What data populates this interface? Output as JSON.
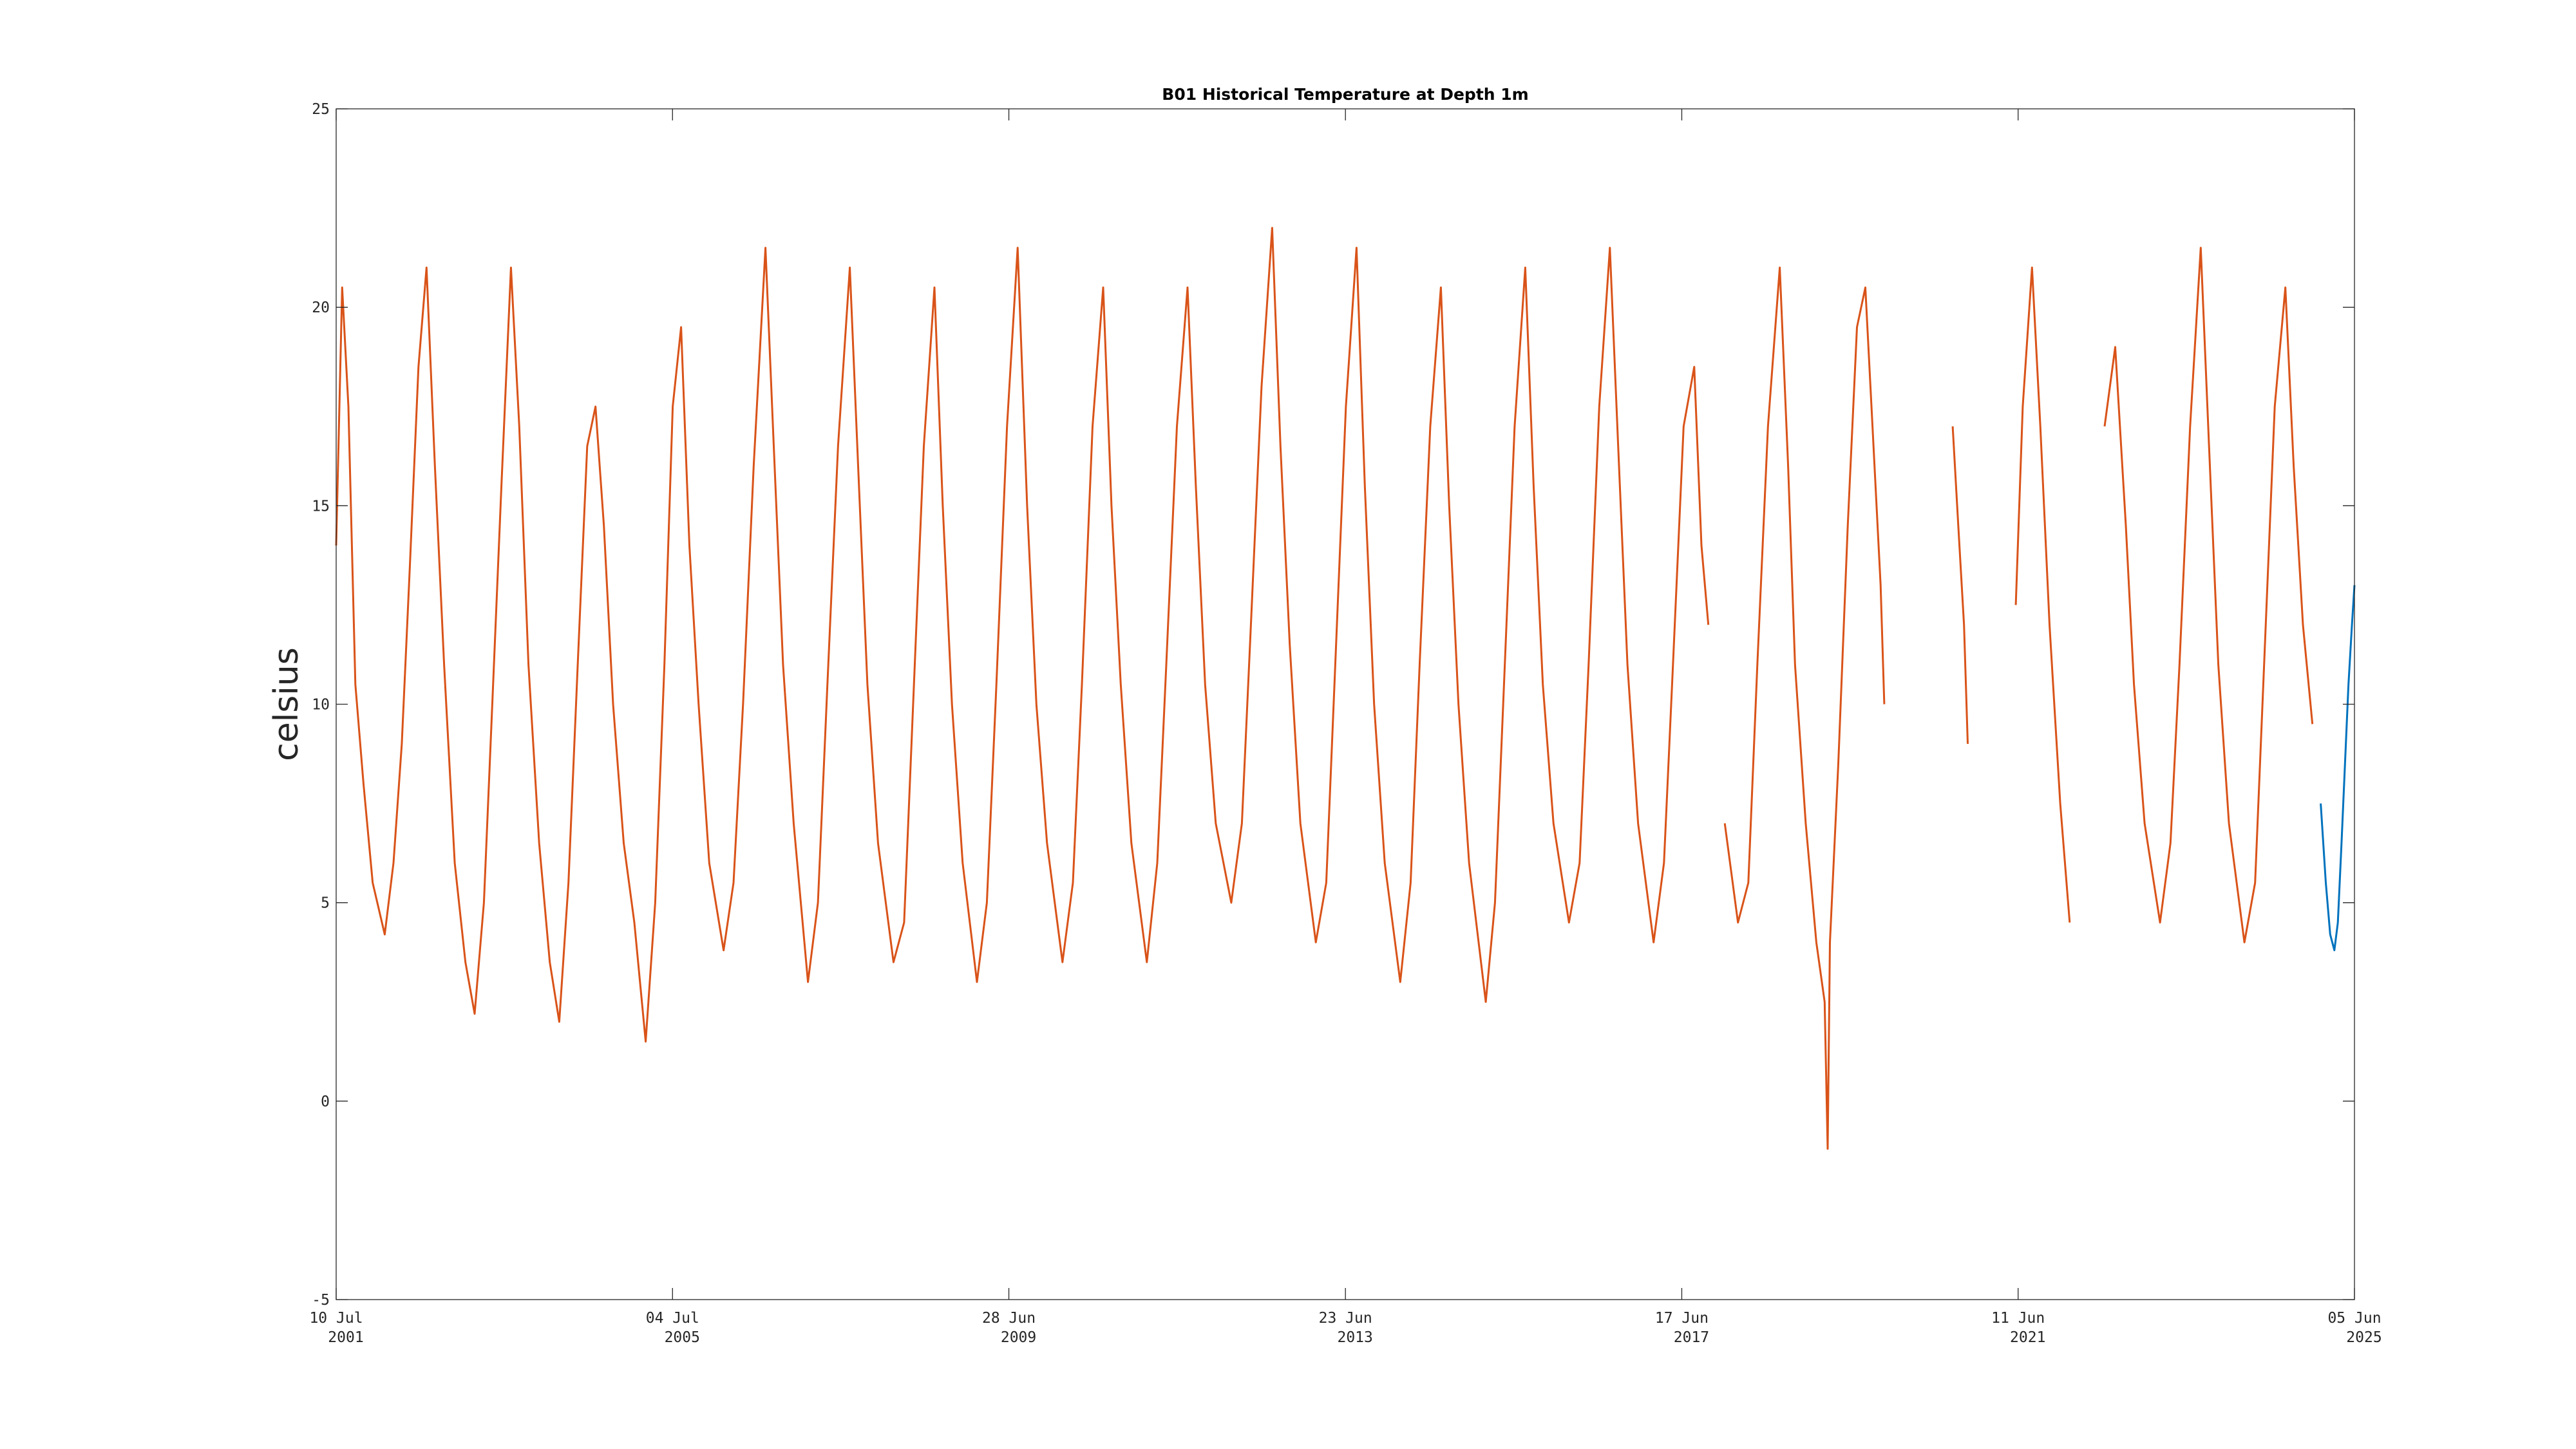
{
  "chart_data": {
    "type": "line",
    "title": "B01 Historical Temperature at Depth 1m",
    "xlabel": "",
    "ylabel": "celsius",
    "xlim": [
      "2001-07-10",
      "2025-06-05"
    ],
    "ylim": [
      -5,
      25
    ],
    "yticks": [
      -5,
      0,
      5,
      10,
      15,
      20,
      25
    ],
    "xticks": [
      {
        "date": "2001-07-10",
        "line1": "10 Jul",
        "line2": "2001"
      },
      {
        "date": "2005-07-04",
        "line1": "04 Jul",
        "line2": "2005"
      },
      {
        "date": "2009-06-28",
        "line1": "28 Jun",
        "line2": "2009"
      },
      {
        "date": "2013-06-23",
        "line1": "23 Jun",
        "line2": "2013"
      },
      {
        "date": "2017-06-17",
        "line1": "17 Jun",
        "line2": "2017"
      },
      {
        "date": "2021-06-11",
        "line1": "11 Jun",
        "line2": "2021"
      },
      {
        "date": "2025-06-05",
        "line1": "05 Jun",
        "line2": "2025"
      }
    ],
    "grid": false,
    "legend": "none",
    "series": [
      {
        "color": "#D95319",
        "points": [
          [
            "2001-07-10",
            14.0
          ],
          [
            "2001-08-05",
            20.5
          ],
          [
            "2001-09-01",
            17.5
          ],
          [
            "2001-10-01",
            10.5
          ],
          [
            "2001-11-05",
            8.0
          ],
          [
            "2001-12-15",
            5.5
          ],
          [
            "2002-02-05",
            4.2
          ],
          [
            "2002-03-15",
            6.0
          ],
          [
            "2002-04-20",
            9.0
          ],
          [
            "2002-05-25",
            13.5
          ],
          [
            "2002-07-01",
            18.5
          ],
          [
            "2002-08-05",
            21.0
          ],
          [
            "2002-09-10",
            16.0
          ],
          [
            "2002-10-20",
            11.0
          ],
          [
            "2002-12-05",
            6.0
          ],
          [
            "2003-01-20",
            3.5
          ],
          [
            "2003-03-01",
            2.2
          ],
          [
            "2003-04-10",
            5.0
          ],
          [
            "2003-05-20",
            10.5
          ],
          [
            "2003-06-25",
            15.5
          ],
          [
            "2003-08-05",
            21.0
          ],
          [
            "2003-09-10",
            17.0
          ],
          [
            "2003-10-20",
            11.0
          ],
          [
            "2003-12-05",
            6.5
          ],
          [
            "2004-01-20",
            3.5
          ],
          [
            "2004-03-01",
            2.0
          ],
          [
            "2004-04-10",
            5.5
          ],
          [
            "2004-05-20",
            11.0
          ],
          [
            "2004-06-30",
            16.5
          ],
          [
            "2004-08-05",
            17.5
          ],
          [
            "2004-09-10",
            14.5
          ],
          [
            "2004-10-20",
            10.0
          ],
          [
            "2004-12-05",
            6.5
          ],
          [
            "2005-01-20",
            4.5
          ],
          [
            "2005-03-10",
            1.5
          ],
          [
            "2005-04-20",
            5.0
          ],
          [
            "2005-05-30",
            11.0
          ],
          [
            "2005-07-05",
            17.5
          ],
          [
            "2005-08-10",
            19.5
          ],
          [
            "2005-09-15",
            14.0
          ],
          [
            "2005-10-25",
            10.0
          ],
          [
            "2005-12-10",
            6.0
          ],
          [
            "2006-02-10",
            3.8
          ],
          [
            "2006-03-25",
            5.5
          ],
          [
            "2006-05-05",
            10.0
          ],
          [
            "2006-06-20",
            16.0
          ],
          [
            "2006-08-10",
            21.5
          ],
          [
            "2006-09-15",
            16.5
          ],
          [
            "2006-10-25",
            11.0
          ],
          [
            "2006-12-10",
            7.0
          ],
          [
            "2007-02-10",
            3.0
          ],
          [
            "2007-03-25",
            5.0
          ],
          [
            "2007-05-05",
            10.5
          ],
          [
            "2007-06-20",
            16.5
          ],
          [
            "2007-08-10",
            21.0
          ],
          [
            "2007-09-15",
            16.0
          ],
          [
            "2007-10-25",
            10.5
          ],
          [
            "2007-12-10",
            6.5
          ],
          [
            "2008-02-15",
            3.5
          ],
          [
            "2008-04-01",
            4.5
          ],
          [
            "2008-05-10",
            10.0
          ],
          [
            "2008-06-25",
            16.5
          ],
          [
            "2008-08-10",
            20.5
          ],
          [
            "2008-09-15",
            15.0
          ],
          [
            "2008-10-25",
            10.0
          ],
          [
            "2008-12-10",
            6.0
          ],
          [
            "2009-02-10",
            3.0
          ],
          [
            "2009-03-25",
            5.0
          ],
          [
            "2009-05-05",
            10.5
          ],
          [
            "2009-06-20",
            17.0
          ],
          [
            "2009-08-05",
            21.5
          ],
          [
            "2009-09-15",
            15.0
          ],
          [
            "2009-10-25",
            10.0
          ],
          [
            "2009-12-10",
            6.5
          ],
          [
            "2010-02-15",
            3.5
          ],
          [
            "2010-04-01",
            5.5
          ],
          [
            "2010-05-10",
            10.5
          ],
          [
            "2010-06-25",
            17.0
          ],
          [
            "2010-08-10",
            20.5
          ],
          [
            "2010-09-15",
            15.0
          ],
          [
            "2010-10-25",
            10.5
          ],
          [
            "2010-12-10",
            6.5
          ],
          [
            "2011-02-15",
            3.5
          ],
          [
            "2011-04-01",
            6.0
          ],
          [
            "2011-05-10",
            11.0
          ],
          [
            "2011-06-25",
            17.0
          ],
          [
            "2011-08-10",
            20.5
          ],
          [
            "2011-09-15",
            15.5
          ],
          [
            "2011-10-25",
            10.5
          ],
          [
            "2011-12-10",
            7.0
          ],
          [
            "2012-02-15",
            5.0
          ],
          [
            "2012-04-01",
            7.0
          ],
          [
            "2012-05-10",
            12.0
          ],
          [
            "2012-06-25",
            18.0
          ],
          [
            "2012-08-10",
            22.0
          ],
          [
            "2012-09-15",
            16.5
          ],
          [
            "2012-10-25",
            11.5
          ],
          [
            "2012-12-10",
            7.0
          ],
          [
            "2013-02-15",
            4.0
          ],
          [
            "2013-04-01",
            5.5
          ],
          [
            "2013-05-10",
            11.0
          ],
          [
            "2013-06-25",
            17.5
          ],
          [
            "2013-08-10",
            21.5
          ],
          [
            "2013-09-15",
            15.5
          ],
          [
            "2013-10-25",
            10.0
          ],
          [
            "2013-12-10",
            6.0
          ],
          [
            "2014-02-15",
            3.0
          ],
          [
            "2014-04-01",
            5.5
          ],
          [
            "2014-05-10",
            11.0
          ],
          [
            "2014-06-25",
            17.0
          ],
          [
            "2014-08-10",
            20.5
          ],
          [
            "2014-09-15",
            15.0
          ],
          [
            "2014-10-25",
            10.0
          ],
          [
            "2014-12-10",
            6.0
          ],
          [
            "2015-02-20",
            2.5
          ],
          [
            "2015-04-01",
            5.0
          ],
          [
            "2015-05-10",
            10.5
          ],
          [
            "2015-06-25",
            17.0
          ],
          [
            "2015-08-10",
            21.0
          ],
          [
            "2015-09-15",
            15.5
          ],
          [
            "2015-10-25",
            10.5
          ],
          [
            "2015-12-10",
            7.0
          ],
          [
            "2016-02-15",
            4.5
          ],
          [
            "2016-04-01",
            6.0
          ],
          [
            "2016-05-10",
            11.0
          ],
          [
            "2016-06-25",
            17.5
          ],
          [
            "2016-08-10",
            21.5
          ],
          [
            "2016-09-15",
            16.5
          ],
          [
            "2016-10-25",
            11.0
          ],
          [
            "2016-12-10",
            7.0
          ],
          [
            "2017-02-15",
            4.0
          ],
          [
            "2017-04-01",
            6.0
          ],
          [
            "2017-05-10",
            11.0
          ],
          [
            "2017-06-25",
            17.0
          ],
          [
            "2017-08-10",
            18.5
          ],
          [
            "2017-09-10",
            14.0
          ],
          [
            "2017-10-10",
            12.0
          ],
          null,
          [
            "2017-12-20",
            7.0
          ],
          [
            "2018-02-15",
            4.5
          ],
          [
            "2018-04-01",
            5.5
          ],
          [
            "2018-05-10",
            11.0
          ],
          [
            "2018-06-25",
            17.0
          ],
          [
            "2018-08-15",
            21.0
          ],
          [
            "2018-09-20",
            16.0
          ],
          [
            "2018-10-20",
            11.0
          ],
          [
            "2018-12-05",
            7.0
          ],
          [
            "2019-01-20",
            4.0
          ],
          [
            "2019-02-25",
            2.5
          ],
          [
            "2019-03-10",
            -1.2
          ],
          [
            "2019-03-20",
            4.0
          ],
          [
            "2019-04-25",
            8.5
          ],
          [
            "2019-06-05",
            14.5
          ],
          [
            "2019-07-15",
            19.5
          ],
          [
            "2019-08-20",
            20.5
          ],
          [
            "2019-09-20",
            17.0
          ],
          [
            "2019-10-25",
            13.0
          ],
          [
            "2019-11-10",
            10.0
          ],
          null,
          [
            "2020-09-01",
            17.0
          ],
          [
            "2020-09-25",
            14.5
          ],
          [
            "2020-10-20",
            12.0
          ],
          [
            "2020-11-05",
            9.0
          ],
          null,
          [
            "2021-06-01",
            12.5
          ],
          [
            "2021-07-01",
            17.5
          ],
          [
            "2021-08-10",
            21.0
          ],
          [
            "2021-09-15",
            17.0
          ],
          [
            "2021-10-25",
            12.0
          ],
          [
            "2021-12-10",
            7.5
          ],
          [
            "2022-01-20",
            4.5
          ],
          null,
          [
            "2022-06-20",
            17.0
          ],
          [
            "2022-08-05",
            19.0
          ],
          [
            "2022-09-20",
            14.5
          ],
          [
            "2022-10-25",
            10.5
          ],
          [
            "2022-12-10",
            7.0
          ],
          [
            "2023-02-15",
            4.5
          ],
          [
            "2023-04-01",
            6.5
          ],
          [
            "2023-05-10",
            11.0
          ],
          [
            "2023-06-25",
            17.0
          ],
          [
            "2023-08-10",
            21.5
          ],
          [
            "2023-09-15",
            16.5
          ],
          [
            "2023-10-25",
            11.0
          ],
          [
            "2023-12-10",
            7.0
          ],
          [
            "2024-02-15",
            4.0
          ],
          [
            "2024-04-01",
            5.5
          ],
          [
            "2024-05-10",
            11.0
          ],
          [
            "2024-06-25",
            17.5
          ],
          [
            "2024-08-10",
            20.5
          ],
          [
            "2024-09-15",
            16.0
          ],
          [
            "2024-10-25",
            12.0
          ],
          [
            "2024-12-05",
            9.5
          ]
        ]
      },
      {
        "color": "#0072BD",
        "points": [
          [
            "2025-01-10",
            7.5
          ],
          [
            "2025-02-01",
            5.5
          ],
          [
            "2025-02-20",
            4.2
          ],
          [
            "2025-03-10",
            3.8
          ],
          [
            "2025-03-25",
            4.5
          ],
          [
            "2025-04-10",
            6.5
          ],
          [
            "2025-04-25",
            8.5
          ],
          [
            "2025-05-10",
            10.5
          ],
          [
            "2025-05-25",
            12.0
          ],
          [
            "2025-06-05",
            13.0
          ]
        ]
      }
    ]
  }
}
